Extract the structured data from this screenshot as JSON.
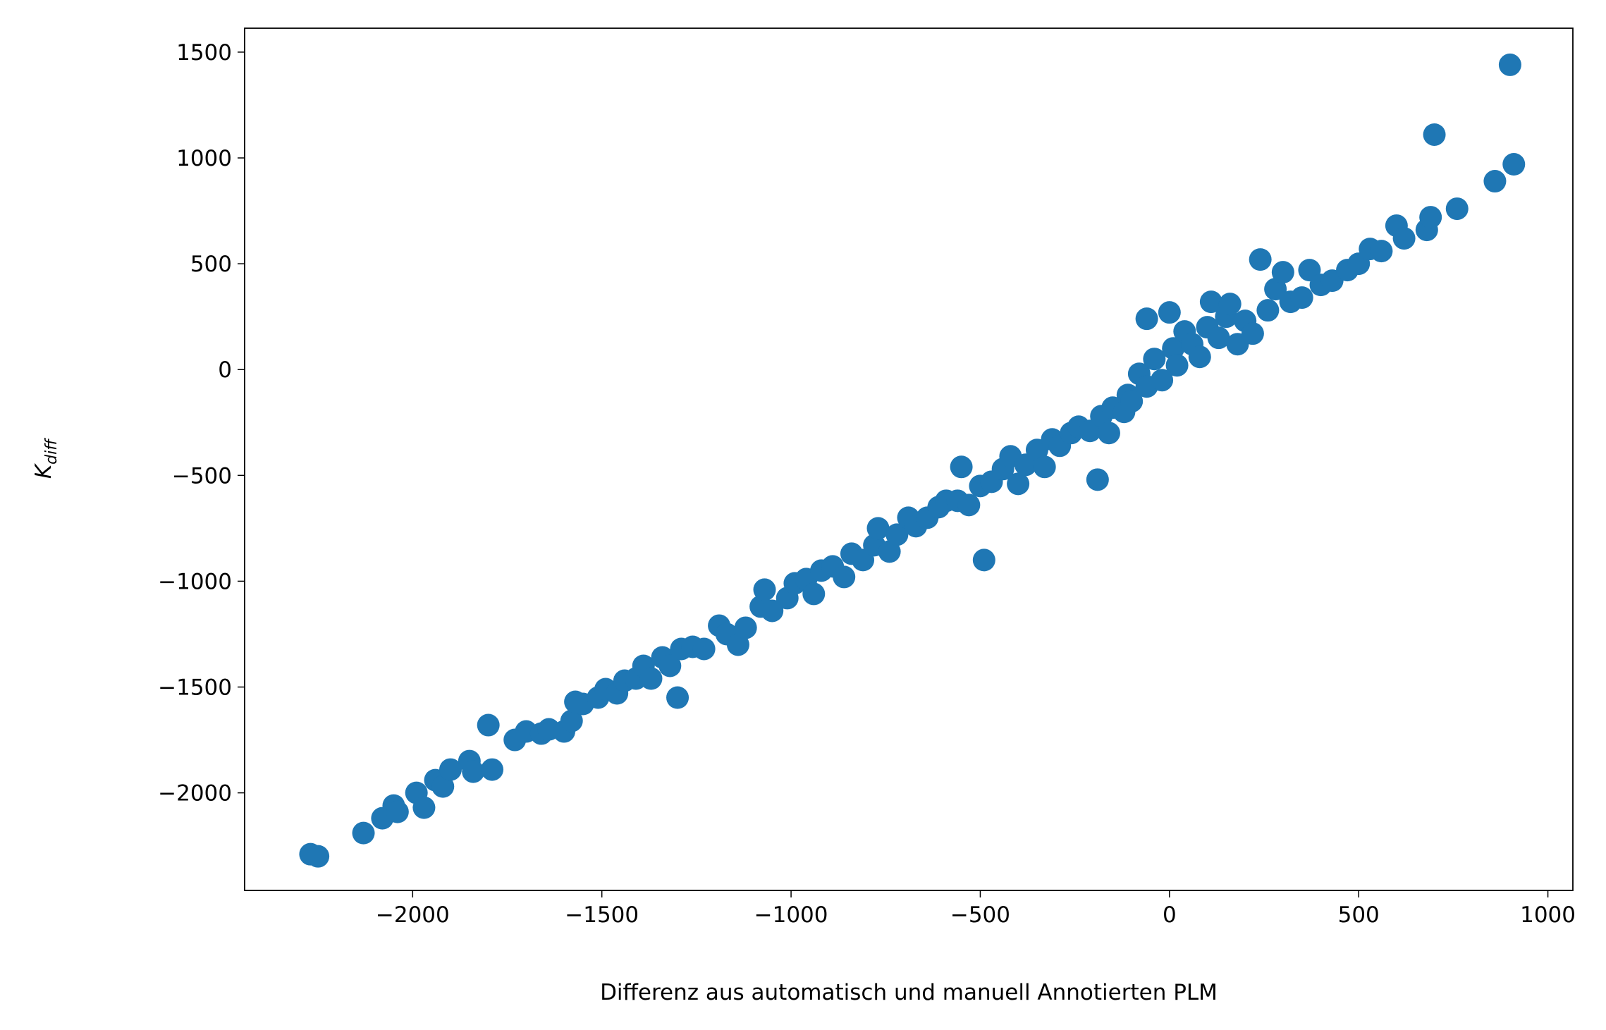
{
  "chart_data": {
    "type": "scatter",
    "xlabel": "Differenz aus automatisch und manuell Annotierten PLM",
    "ylabel": "K",
    "ylabel_sub": "diff",
    "color": "#1f77b4",
    "xlim": [
      -2444,
      1066
    ],
    "ylim": [
      -2461,
      1613
    ],
    "xticks": [
      {
        "value": -2000,
        "label": "−2000"
      },
      {
        "value": -1500,
        "label": "−1500"
      },
      {
        "value": -1000,
        "label": "−1000"
      },
      {
        "value": -500,
        "label": "−500"
      },
      0,
      500,
      1000
    ],
    "yticks": [
      {
        "value": -2000,
        "label": "−2000"
      },
      {
        "value": -1500,
        "label": "−1500"
      },
      {
        "value": -1000,
        "label": "−1000"
      },
      {
        "value": -500,
        "label": "−500"
      },
      0,
      500,
      1000,
      1500
    ],
    "x": [
      -2270,
      -2250,
      -2130,
      -2080,
      -2050,
      -2040,
      -1990,
      -1970,
      -1940,
      -1920,
      -1900,
      -1850,
      -1840,
      -1800,
      -1790,
      -1730,
      -1700,
      -1660,
      -1640,
      -1600,
      -1580,
      -1570,
      -1550,
      -1510,
      -1490,
      -1460,
      -1440,
      -1410,
      -1390,
      -1370,
      -1340,
      -1320,
      -1300,
      -1290,
      -1260,
      -1230,
      -1190,
      -1170,
      -1140,
      -1120,
      -1080,
      -1070,
      -1050,
      -1010,
      -990,
      -960,
      -940,
      -920,
      -890,
      -860,
      -840,
      -810,
      -780,
      -770,
      -740,
      -720,
      -690,
      -670,
      -640,
      -610,
      -590,
      -560,
      -550,
      -530,
      -500,
      -490,
      -470,
      -440,
      -420,
      -400,
      -380,
      -350,
      -330,
      -310,
      -290,
      -260,
      -240,
      -210,
      -190,
      -180,
      -160,
      -150,
      -120,
      -110,
      -100,
      -80,
      -60,
      -60,
      -40,
      -20,
      0,
      10,
      20,
      40,
      60,
      80,
      100,
      110,
      130,
      150,
      160,
      180,
      200,
      220,
      240,
      260,
      280,
      300,
      320,
      350,
      370,
      400,
      430,
      470,
      500,
      530,
      560,
      600,
      620,
      680,
      690,
      700,
      760,
      860,
      900,
      910
    ],
    "values": [
      -2290,
      -2300,
      -2190,
      -2120,
      -2060,
      -2090,
      -2000,
      -2070,
      -1940,
      -1970,
      -1890,
      -1850,
      -1900,
      -1680,
      -1890,
      -1750,
      -1710,
      -1720,
      -1700,
      -1710,
      -1660,
      -1570,
      -1580,
      -1550,
      -1510,
      -1530,
      -1470,
      -1460,
      -1400,
      -1460,
      -1360,
      -1400,
      -1550,
      -1320,
      -1310,
      -1320,
      -1210,
      -1250,
      -1300,
      -1220,
      -1120,
      -1040,
      -1140,
      -1080,
      -1010,
      -990,
      -1060,
      -950,
      -930,
      -980,
      -870,
      -900,
      -830,
      -750,
      -860,
      -780,
      -700,
      -740,
      -700,
      -650,
      -620,
      -620,
      -460,
      -640,
      -550,
      -900,
      -530,
      -470,
      -410,
      -540,
      -450,
      -380,
      -460,
      -330,
      -360,
      -300,
      -270,
      -290,
      -520,
      -220,
      -300,
      -180,
      -200,
      -120,
      -150,
      -20,
      240,
      -80,
      50,
      -50,
      270,
      100,
      20,
      180,
      120,
      60,
      200,
      320,
      150,
      250,
      310,
      120,
      230,
      170,
      520,
      280,
      380,
      460,
      320,
      340,
      470,
      400,
      420,
      470,
      500,
      570,
      560,
      680,
      620,
      660,
      720,
      1110,
      760,
      890,
      1440,
      970
    ]
  }
}
